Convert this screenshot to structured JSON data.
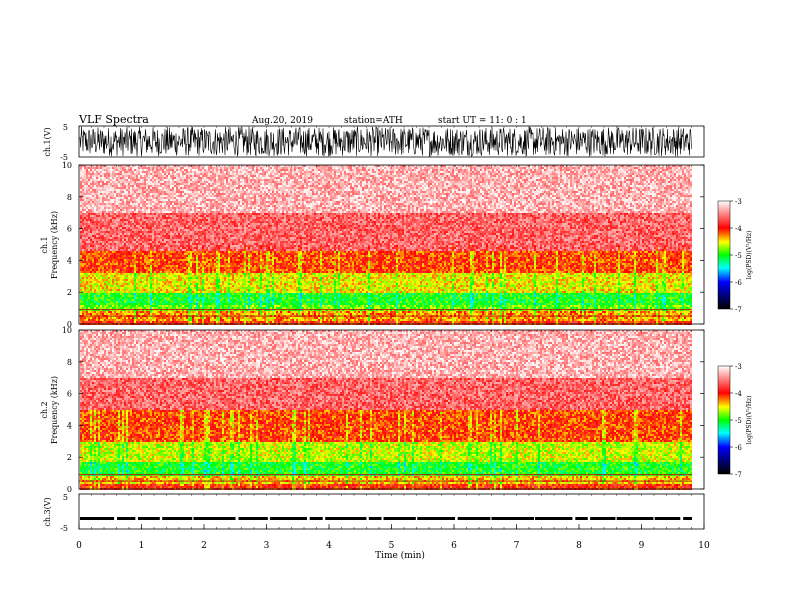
{
  "header": {
    "title": "VLF  Spectra",
    "date": "Aug.20, 2019",
    "station": "station=ATH",
    "start": "start  UT  =    11: 0   : 1"
  },
  "chart_data": [
    {
      "type": "line",
      "panel": "ch1-waveform",
      "ylabel": "ch.1(V)",
      "ylim": [
        -5,
        5
      ],
      "yticks": [
        "5",
        "-5"
      ],
      "xlim": [
        0,
        10
      ],
      "note_values": "waveform amplitude approx -5 to 5 V (dense noise trace)"
    },
    {
      "type": "heatmap",
      "panel": "ch1-spectrogram",
      "ylabel": "ch.1\nFrequency  (kHz)",
      "ylabel_line1": "ch.1",
      "ylabel_line2": "Frequency  (kHz)",
      "ylim": [
        0,
        10
      ],
      "yticks": [
        "0",
        "2",
        "4",
        "6",
        "8",
        "10"
      ],
      "xlim": [
        0,
        10
      ],
      "bands": [
        {
          "from_khz": 0,
          "to_khz": 0.3,
          "level": -4.0
        },
        {
          "from_khz": 0.3,
          "to_khz": 0.9,
          "level": -4.3
        },
        {
          "from_khz": 0.9,
          "to_khz": 1.2,
          "level": -4.8
        },
        {
          "from_khz": 1.2,
          "to_khz": 2.0,
          "level": -5.0
        },
        {
          "from_khz": 2.0,
          "to_khz": 3.3,
          "level": -4.5
        },
        {
          "from_khz": 3.3,
          "to_khz": 4.6,
          "level": -4.1
        },
        {
          "from_khz": 4.6,
          "to_khz": 7.0,
          "level": -3.6
        },
        {
          "from_khz": 7.0,
          "to_khz": 10.0,
          "level": -3.3
        }
      ],
      "colorbar": {
        "label": "log(PSD)(V²/Hz)",
        "ticks": [
          "-3",
          "-4",
          "-5",
          "-6",
          "-7"
        ],
        "range": [
          -7,
          -3
        ]
      }
    },
    {
      "type": "heatmap",
      "panel": "ch2-spectrogram",
      "ylabel_line1": "ch.2",
      "ylabel_line2": "Frequency  (kHz)",
      "ylim": [
        0,
        10
      ],
      "yticks": [
        "0",
        "2",
        "4",
        "6",
        "8",
        "10"
      ],
      "xlim": [
        0,
        10
      ],
      "bands": [
        {
          "from_khz": 0,
          "to_khz": 0.4,
          "level": -4.0
        },
        {
          "from_khz": 0.4,
          "to_khz": 0.9,
          "level": -4.4
        },
        {
          "from_khz": 0.9,
          "to_khz": 1.8,
          "level": -5.0
        },
        {
          "from_khz": 1.8,
          "to_khz": 3.0,
          "level": -4.6
        },
        {
          "from_khz": 3.0,
          "to_khz": 5.0,
          "level": -4.1
        },
        {
          "from_khz": 5.0,
          "to_khz": 7.0,
          "level": -3.6
        },
        {
          "from_khz": 7.0,
          "to_khz": 10.0,
          "level": -3.3
        }
      ],
      "colorbar": {
        "label": "log(PSD)(V²/Hz)",
        "ticks": [
          "-3",
          "-4",
          "-5",
          "-6",
          "-7"
        ],
        "range": [
          -7,
          -3
        ]
      }
    },
    {
      "type": "line",
      "panel": "ch3-waveform",
      "ylabel": "ch.3(V)",
      "ylim": [
        -5,
        5
      ],
      "yticks": [
        "5",
        "-5"
      ],
      "xlim": [
        0,
        10
      ],
      "xlabel": "Time  (min)",
      "xticks": [
        "0",
        "1",
        "2",
        "3",
        "4",
        "5",
        "6",
        "7",
        "8",
        "9",
        "10"
      ],
      "level_v": -2.0
    }
  ]
}
